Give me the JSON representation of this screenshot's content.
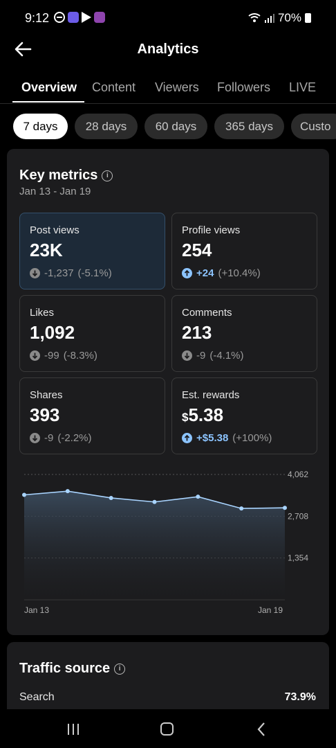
{
  "status": {
    "time": "9:12",
    "battery": "70%"
  },
  "header": {
    "title": "Analytics"
  },
  "tabs": [
    {
      "label": "Overview"
    },
    {
      "label": "Content"
    },
    {
      "label": "Viewers"
    },
    {
      "label": "Followers"
    },
    {
      "label": "LIVE"
    }
  ],
  "ranges": [
    {
      "label": "7 days"
    },
    {
      "label": "28 days"
    },
    {
      "label": "60 days"
    },
    {
      "label": "365 days"
    },
    {
      "label": "Custo"
    }
  ],
  "key_metrics": {
    "title": "Key metrics",
    "range": "Jan 13 - Jan 19",
    "items": [
      {
        "label": "Post views",
        "value": "23K",
        "change_abs": "-1,237",
        "change_pct": "(-5.1%)",
        "direction": "down"
      },
      {
        "label": "Profile views",
        "value": "254",
        "change_abs": "+24",
        "change_pct": "(+10.4%)",
        "direction": "up"
      },
      {
        "label": "Likes",
        "value": "1,092",
        "change_abs": "-99",
        "change_pct": "(-8.3%)",
        "direction": "down"
      },
      {
        "label": "Comments",
        "value": "213",
        "change_abs": "-9",
        "change_pct": "(-4.1%)",
        "direction": "down"
      },
      {
        "label": "Shares",
        "value": "393",
        "change_abs": "-9",
        "change_pct": "(-2.2%)",
        "direction": "down"
      },
      {
        "label": "Est. rewards",
        "currency": "$",
        "value": "5.38",
        "change_abs": "+$5.38",
        "change_pct": "(+100%)",
        "direction": "up"
      }
    ]
  },
  "chart_data": {
    "type": "area",
    "x_labels": [
      "Jan 13",
      "Jan 19"
    ],
    "y_ticks": [
      "4,062",
      "2,708",
      "1,354"
    ],
    "y_tick_values": [
      4062,
      2708,
      1354
    ],
    "ylim": [
      0,
      4062
    ],
    "x": [
      "Jan 13",
      "Jan 14",
      "Jan 15",
      "Jan 16",
      "Jan 17",
      "Jan 18",
      "Jan 19"
    ],
    "values": [
      3400,
      3520,
      3300,
      3170,
      3340,
      2960,
      2980
    ],
    "line_color": "#a9d4ff"
  },
  "traffic_source": {
    "title": "Traffic source",
    "rows": [
      {
        "label": "Search",
        "value": "73.9%"
      }
    ]
  }
}
